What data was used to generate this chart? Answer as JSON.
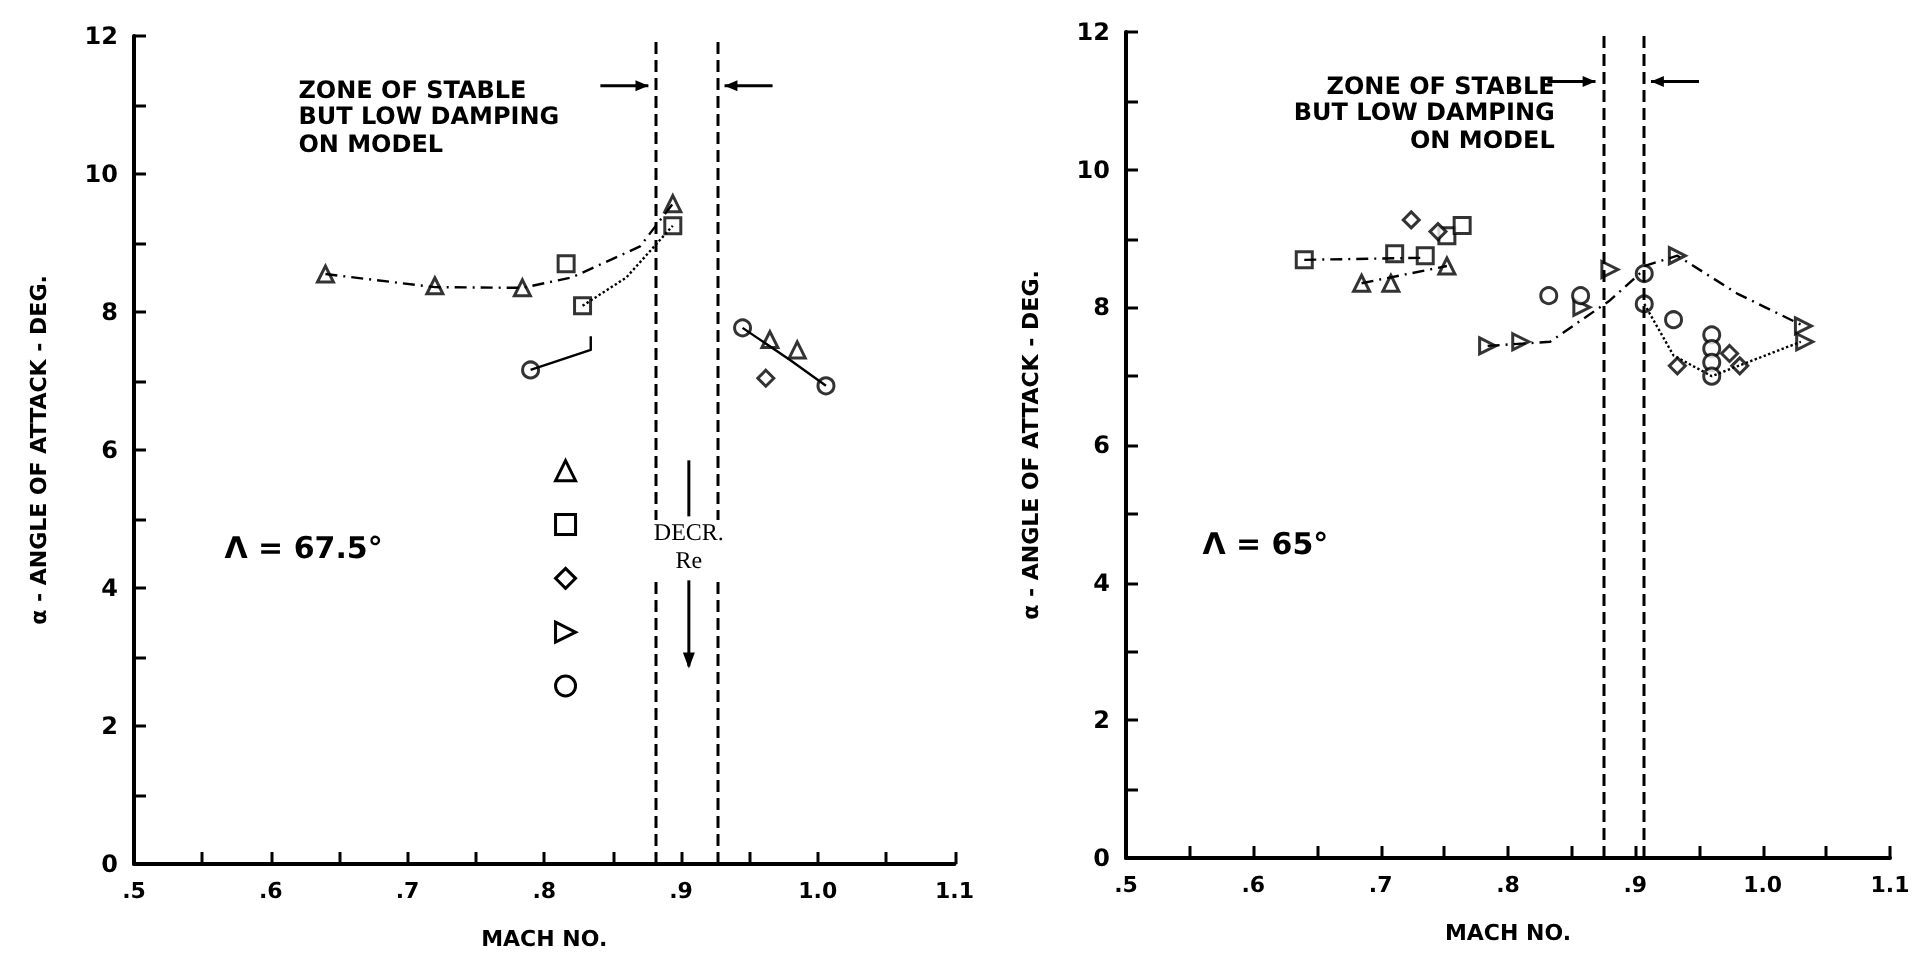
{
  "chart_data": [
    {
      "type": "scatter",
      "xlabel": "MACH NO.",
      "ylabel": "α - ANGLE OF ATTACK - DEG.",
      "xlim": [
        0.5,
        1.1
      ],
      "ylim": [
        0,
        12
      ],
      "xticks": [
        {
          "value": 0.5,
          "label": ".5"
        },
        {
          "value": 0.55,
          "label": null
        },
        {
          "value": 0.6,
          "label": ".6"
        },
        {
          "value": 0.65,
          "label": null
        },
        {
          "value": 0.7,
          "label": ".7"
        },
        {
          "value": 0.75,
          "label": null
        },
        {
          "value": 0.8,
          "label": ".8"
        },
        {
          "value": 0.85,
          "label": null
        },
        {
          "value": 0.9,
          "label": ".9"
        },
        {
          "value": 0.95,
          "label": null
        },
        {
          "value": 1.0,
          "label": "1.0"
        },
        {
          "value": 1.05,
          "label": null
        },
        {
          "value": 1.1,
          "label": "1.1"
        }
      ],
      "yticks": [
        0,
        {
          "value": 1,
          "label": null
        },
        2,
        {
          "value": 3,
          "label": null
        },
        4,
        {
          "value": 5,
          "label": null
        },
        6,
        {
          "value": 7,
          "label": null
        },
        8,
        {
          "value": 9,
          "label": null
        },
        10,
        {
          "value": 11,
          "label": null
        },
        12
      ],
      "annotations": [
        "ZONE OF STABLE\nBUT LOW DAMPING\nON MODEL",
        "Λ = 67.5°",
        "DECR.\nRe"
      ],
      "ref_lines": [
        {
          "axis": "x",
          "value": 0.882,
          "line_style": "dashed"
        },
        {
          "axis": "x",
          "value": 0.926,
          "line_style": "dashed"
        }
      ],
      "series": [
        {
          "marker": "triangle",
          "color": "#000000",
          "x": [
            0.64,
            0.72,
            0.784,
            0.894,
            0.965,
            0.985
          ],
          "values": [
            8.55,
            8.38,
            8.35,
            9.57,
            7.6,
            7.45
          ]
        },
        {
          "marker": "square",
          "color": "#000000",
          "x": [
            0.816,
            0.828,
            0.894
          ],
          "values": [
            8.7,
            8.09,
            9.25
          ]
        },
        {
          "marker": "diamond",
          "color": "#000000",
          "x": [
            0.962
          ],
          "values": [
            7.04
          ]
        },
        {
          "marker": "circle",
          "color": "#000000",
          "x": [
            0.79,
            0.945,
            1.006
          ],
          "values": [
            7.16,
            7.77,
            6.93
          ]
        },
        {
          "type": "line",
          "marker": "none",
          "line_style": "dashed",
          "color": "#000000",
          "x": [
            0.64,
            0.72,
            0.784,
            0.82,
            0.87,
            0.894
          ],
          "values": [
            8.55,
            8.36,
            8.35,
            8.5,
            8.95,
            9.57
          ]
        },
        {
          "type": "line",
          "marker": "none",
          "line_style": "dotted",
          "color": "#000000",
          "x": [
            0.828,
            0.86,
            0.894
          ],
          "values": [
            8.09,
            8.5,
            9.25
          ]
        },
        {
          "type": "line",
          "marker": "none",
          "line_style": "solid",
          "color": "#000000",
          "x": [
            0.79,
            0.834,
            0.834
          ],
          "values": [
            7.16,
            7.45,
            7.65
          ]
        },
        {
          "type": "line",
          "marker": "none",
          "line_style": "solid",
          "color": "#000000",
          "x": [
            0.945,
            0.98,
            1.006
          ],
          "values": [
            7.77,
            7.3,
            6.93
          ]
        }
      ]
    },
    {
      "type": "scatter",
      "xlabel": "MACH NO.",
      "ylabel": "α - ANGLE OF ATTACK - DEG.",
      "xlim": [
        0.5,
        1.1
      ],
      "ylim": [
        0,
        12
      ],
      "xticks": [
        {
          "value": 0.5,
          "label": ".5"
        },
        {
          "value": 0.55,
          "label": null
        },
        {
          "value": 0.6,
          "label": ".6"
        },
        {
          "value": 0.65,
          "label": null
        },
        {
          "value": 0.7,
          "label": ".7"
        },
        {
          "value": 0.75,
          "label": null
        },
        {
          "value": 0.8,
          "label": ".8"
        },
        {
          "value": 0.85,
          "label": null
        },
        {
          "value": 0.9,
          "label": ".9"
        },
        {
          "value": 0.95,
          "label": null
        },
        {
          "value": 1.0,
          "label": "1.0"
        },
        {
          "value": 1.05,
          "label": null
        },
        {
          "value": 1.1,
          "label": "1.1"
        }
      ],
      "yticks": [
        0,
        {
          "value": 1,
          "label": null
        },
        2,
        {
          "value": 3,
          "label": null
        },
        4,
        {
          "value": 5,
          "label": null
        },
        6,
        {
          "value": 7,
          "label": null
        },
        8,
        {
          "value": 9,
          "label": null
        },
        10,
        {
          "value": 11,
          "label": null
        },
        12
      ],
      "annotations": [
        "ZONE OF STABLE\nBUT LOW DAMPING\nON MODEL",
        "Λ = 65°"
      ],
      "ref_lines": [
        {
          "axis": "x",
          "value": 0.875,
          "line_style": "dashed"
        },
        {
          "axis": "x",
          "value": 0.906,
          "line_style": "dashed"
        }
      ],
      "series": [
        {
          "marker": "triangle",
          "color": "#000000",
          "x": [
            0.685,
            0.708,
            0.752
          ],
          "values": [
            8.35,
            8.35,
            8.6
          ]
        },
        {
          "marker": "square",
          "color": "#000000",
          "x": [
            0.64,
            0.711,
            0.735,
            0.752,
            0.764
          ],
          "values": [
            8.69,
            8.78,
            8.75,
            9.04,
            9.19
          ]
        },
        {
          "marker": "diamond",
          "color": "#000000",
          "x": [
            0.724,
            0.745,
            0.933,
            0.974,
            0.982
          ],
          "values": [
            9.27,
            9.1,
            7.15,
            7.33,
            7.15
          ]
        },
        {
          "marker": "triangle-right",
          "color": "#000000",
          "x": [
            0.784,
            0.81,
            0.858,
            0.88,
            0.933,
            1.032,
            1.033
          ],
          "values": [
            7.44,
            7.5,
            8.0,
            8.55,
            8.75,
            7.73,
            7.5
          ]
        },
        {
          "marker": "circle",
          "color": "#000000",
          "x": [
            0.832,
            0.857,
            0.907,
            0.907,
            0.93,
            0.96,
            0.96,
            0.96,
            0.96
          ],
          "values": [
            8.17,
            8.17,
            8.49,
            8.05,
            7.82,
            7.6,
            7.4,
            7.2,
            7.0
          ]
        },
        {
          "type": "line",
          "marker": "none",
          "line_style": "dashed",
          "color": "#000000",
          "x": [
            0.64,
            0.735
          ],
          "values": [
            8.69,
            8.72
          ]
        },
        {
          "type": "line",
          "marker": "none",
          "line_style": "dashed",
          "color": "#000000",
          "x": [
            0.685,
            0.752
          ],
          "values": [
            8.35,
            8.6
          ]
        },
        {
          "type": "line",
          "marker": "none",
          "line_style": "dashed",
          "color": "#000000",
          "x": [
            0.784,
            0.833,
            0.88,
            0.907
          ],
          "values": [
            7.44,
            7.5,
            8.1,
            8.55
          ]
        },
        {
          "type": "line",
          "marker": "none",
          "line_style": "dashed",
          "color": "#000000",
          "x": [
            0.907,
            0.933,
            0.98,
            1.032
          ],
          "values": [
            8.6,
            8.75,
            8.2,
            7.73
          ]
        },
        {
          "type": "line",
          "marker": "none",
          "line_style": "dotted",
          "color": "#000000",
          "x": [
            0.907,
            0.93,
            0.96,
            1.03
          ],
          "values": [
            8.05,
            7.3,
            7.0,
            7.5
          ]
        }
      ]
    }
  ]
}
